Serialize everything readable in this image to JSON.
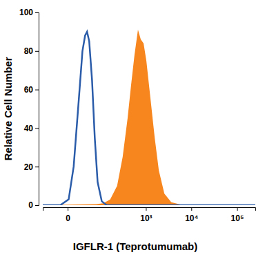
{
  "chart_data": {
    "type": "area",
    "x_label": "IGFLR-1 (Teprotumumab)",
    "y_label": "Relative Cell Number",
    "log": "x",
    "xlim": [
      -50,
      250000
    ],
    "xticks": [
      0,
      {
        "value": 1000,
        "label": "10³"
      },
      {
        "value": 10000,
        "label": "10⁴"
      },
      {
        "value": 100000,
        "label": "10⁵"
      }
    ],
    "ylim": [
      0,
      100
    ],
    "yticks": [
      0,
      20,
      40,
      60,
      80,
      100
    ],
    "series": [
      {
        "type": "area",
        "color": "#f7861e",
        "x": [
          -50,
          64,
          99,
          149,
          220,
          297,
          386,
          463,
          555,
          665,
          768,
          888,
          1023,
          1268,
          1568,
          1936,
          2560,
          3640,
          6620,
          250000
        ],
        "values": [
          0,
          0.5,
          1,
          3,
          10,
          25,
          45,
          62,
          78,
          91,
          86,
          84,
          75,
          55,
          35,
          18,
          6,
          1.5,
          0,
          0
        ]
      },
      {
        "type": "line",
        "color": "#2a5caa",
        "x": [
          -50,
          -9,
          1,
          7,
          15,
          22,
          28,
          33,
          39,
          48,
          58,
          70,
          91,
          122,
          250000
        ],
        "values": [
          0,
          0,
          3,
          20,
          55,
          80,
          88,
          90,
          85,
          65,
          35,
          12,
          2,
          0,
          0
        ]
      }
    ]
  }
}
